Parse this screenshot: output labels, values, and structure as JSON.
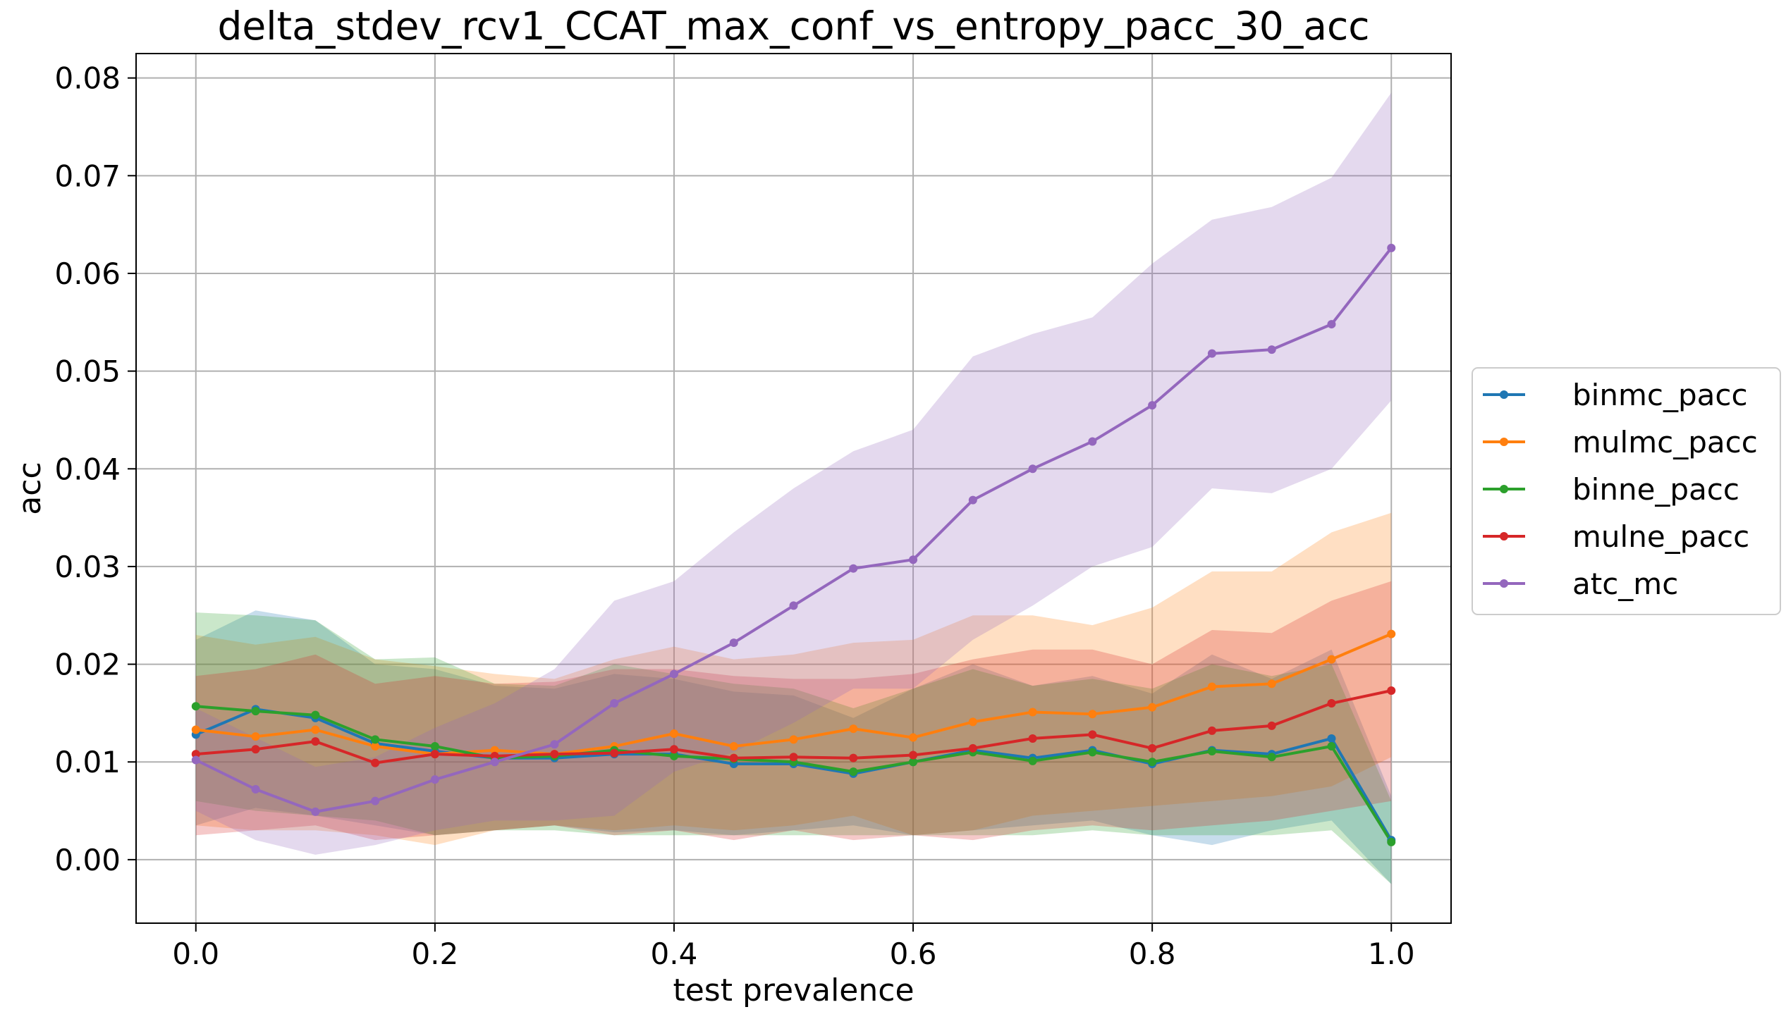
{
  "chart_data": {
    "type": "line",
    "title": "delta_stdev_rcv1_CCAT_max_conf_vs_entropy_pacc_30_acc",
    "xlabel": "test prevalence",
    "ylabel": "acc",
    "xlim": [
      -0.05,
      1.05
    ],
    "ylim": [
      -0.0065,
      0.0825
    ],
    "xticks": [
      0.0,
      0.2,
      0.4,
      0.6,
      0.8,
      1.0
    ],
    "xtick_labels": [
      "0.0",
      "0.2",
      "0.4",
      "0.6",
      "0.8",
      "1.0"
    ],
    "yticks": [
      0.0,
      0.01,
      0.02,
      0.03,
      0.04,
      0.05,
      0.06,
      0.07,
      0.08
    ],
    "ytick_labels": [
      "0.00",
      "0.01",
      "0.02",
      "0.03",
      "0.04",
      "0.05",
      "0.06",
      "0.07",
      "0.08"
    ],
    "grid": true,
    "legend_position": "center-right-outside",
    "x": [
      0.0,
      0.05,
      0.1,
      0.15,
      0.2,
      0.25,
      0.3,
      0.35,
      0.4,
      0.45,
      0.5,
      0.55,
      0.6,
      0.65,
      0.7,
      0.75,
      0.8,
      0.85,
      0.9,
      0.95,
      1.0
    ],
    "series": [
      {
        "name": "binmc_pacc",
        "color": "#1f77b4",
        "values": [
          0.0128,
          0.0154,
          0.0145,
          0.0119,
          0.0111,
          0.0104,
          0.0104,
          0.0108,
          0.0108,
          0.0098,
          0.0098,
          0.0088,
          0.01,
          0.0112,
          0.0104,
          0.0112,
          0.0098,
          0.0112,
          0.0108,
          0.0124,
          0.002
        ],
        "lower": [
          0.0035,
          0.0053,
          0.0045,
          0.0035,
          0.0025,
          0.003,
          0.0035,
          0.0028,
          0.003,
          0.0025,
          0.003,
          0.0035,
          0.0025,
          0.003,
          0.0035,
          0.004,
          0.0025,
          0.0015,
          0.003,
          0.004,
          -0.0025
        ],
        "upper": [
          0.0225,
          0.0255,
          0.0245,
          0.02,
          0.0195,
          0.0178,
          0.0175,
          0.019,
          0.0185,
          0.0172,
          0.0168,
          0.0145,
          0.0175,
          0.02,
          0.0178,
          0.0188,
          0.017,
          0.021,
          0.0185,
          0.0215,
          0.0065
        ]
      },
      {
        "name": "mulmc_pacc",
        "color": "#ff7f0e",
        "values": [
          0.0133,
          0.0126,
          0.0133,
          0.0116,
          0.0108,
          0.0112,
          0.0108,
          0.0116,
          0.0129,
          0.0116,
          0.0123,
          0.0134,
          0.0125,
          0.0141,
          0.0151,
          0.0149,
          0.0156,
          0.0177,
          0.018,
          0.0205,
          0.0231
        ],
        "lower": [
          0.0035,
          0.003,
          0.003,
          0.0025,
          0.0015,
          0.003,
          0.0035,
          0.003,
          0.0035,
          0.003,
          0.0035,
          0.0045,
          0.0025,
          0.003,
          0.0045,
          0.005,
          0.0055,
          0.006,
          0.0065,
          0.0075,
          0.0105
        ],
        "upper": [
          0.023,
          0.022,
          0.0228,
          0.0205,
          0.0198,
          0.019,
          0.0185,
          0.0205,
          0.0218,
          0.0205,
          0.021,
          0.0222,
          0.0225,
          0.025,
          0.025,
          0.024,
          0.0258,
          0.0295,
          0.0295,
          0.0335,
          0.0355
        ]
      },
      {
        "name": "binne_pacc",
        "color": "#2ca02c",
        "values": [
          0.0157,
          0.0152,
          0.0148,
          0.0123,
          0.0116,
          0.0104,
          0.0106,
          0.0112,
          0.0106,
          0.0103,
          0.01,
          0.009,
          0.01,
          0.011,
          0.0101,
          0.011,
          0.01,
          0.0111,
          0.0105,
          0.0116,
          0.0018
        ],
        "lower": [
          0.006,
          0.005,
          0.0045,
          0.004,
          0.0025,
          0.003,
          0.003,
          0.0025,
          0.0025,
          0.0025,
          0.0025,
          0.0025,
          0.0025,
          0.0025,
          0.0025,
          0.003,
          0.0025,
          0.0025,
          0.0025,
          0.003,
          -0.0025
        ],
        "upper": [
          0.0253,
          0.025,
          0.0245,
          0.0205,
          0.0207,
          0.018,
          0.0178,
          0.02,
          0.019,
          0.018,
          0.0175,
          0.0155,
          0.0175,
          0.0195,
          0.0178,
          0.0185,
          0.0175,
          0.02,
          0.0188,
          0.02,
          0.006
        ]
      },
      {
        "name": "mulne_pacc",
        "color": "#d62728",
        "values": [
          0.0108,
          0.0113,
          0.0121,
          0.0099,
          0.0108,
          0.0106,
          0.0108,
          0.0109,
          0.0113,
          0.0104,
          0.0105,
          0.0104,
          0.0107,
          0.0114,
          0.0124,
          0.0128,
          0.0114,
          0.0132,
          0.0137,
          0.016,
          0.0173
        ],
        "lower": [
          0.0025,
          0.003,
          0.0035,
          0.002,
          0.0025,
          0.003,
          0.0035,
          0.0025,
          0.003,
          0.002,
          0.003,
          0.002,
          0.0025,
          0.002,
          0.003,
          0.0035,
          0.003,
          0.0035,
          0.004,
          0.005,
          0.006
        ],
        "upper": [
          0.0188,
          0.0195,
          0.021,
          0.018,
          0.0188,
          0.018,
          0.0182,
          0.0195,
          0.0195,
          0.0188,
          0.0185,
          0.0185,
          0.019,
          0.0205,
          0.0215,
          0.0215,
          0.02,
          0.0235,
          0.0232,
          0.0265,
          0.0285
        ]
      },
      {
        "name": "atc_mc",
        "color": "#9467bd",
        "values": [
          0.0102,
          0.0072,
          0.0049,
          0.006,
          0.0082,
          0.01,
          0.0118,
          0.016,
          0.019,
          0.0222,
          0.026,
          0.0298,
          0.0307,
          0.0368,
          0.04,
          0.0428,
          0.0465,
          0.0518,
          0.0522,
          0.0548,
          0.0626
        ],
        "lower": [
          0.005,
          0.002,
          0.0005,
          0.0015,
          0.003,
          0.004,
          0.004,
          0.0045,
          0.009,
          0.011,
          0.014,
          0.0175,
          0.0175,
          0.0225,
          0.026,
          0.03,
          0.032,
          0.038,
          0.0375,
          0.04,
          0.047
        ],
        "upper": [
          0.0155,
          0.0125,
          0.0095,
          0.0105,
          0.0135,
          0.016,
          0.0195,
          0.0265,
          0.0285,
          0.0335,
          0.038,
          0.0418,
          0.044,
          0.0515,
          0.0538,
          0.0555,
          0.061,
          0.0655,
          0.0668,
          0.0698,
          0.0785
        ]
      }
    ]
  }
}
